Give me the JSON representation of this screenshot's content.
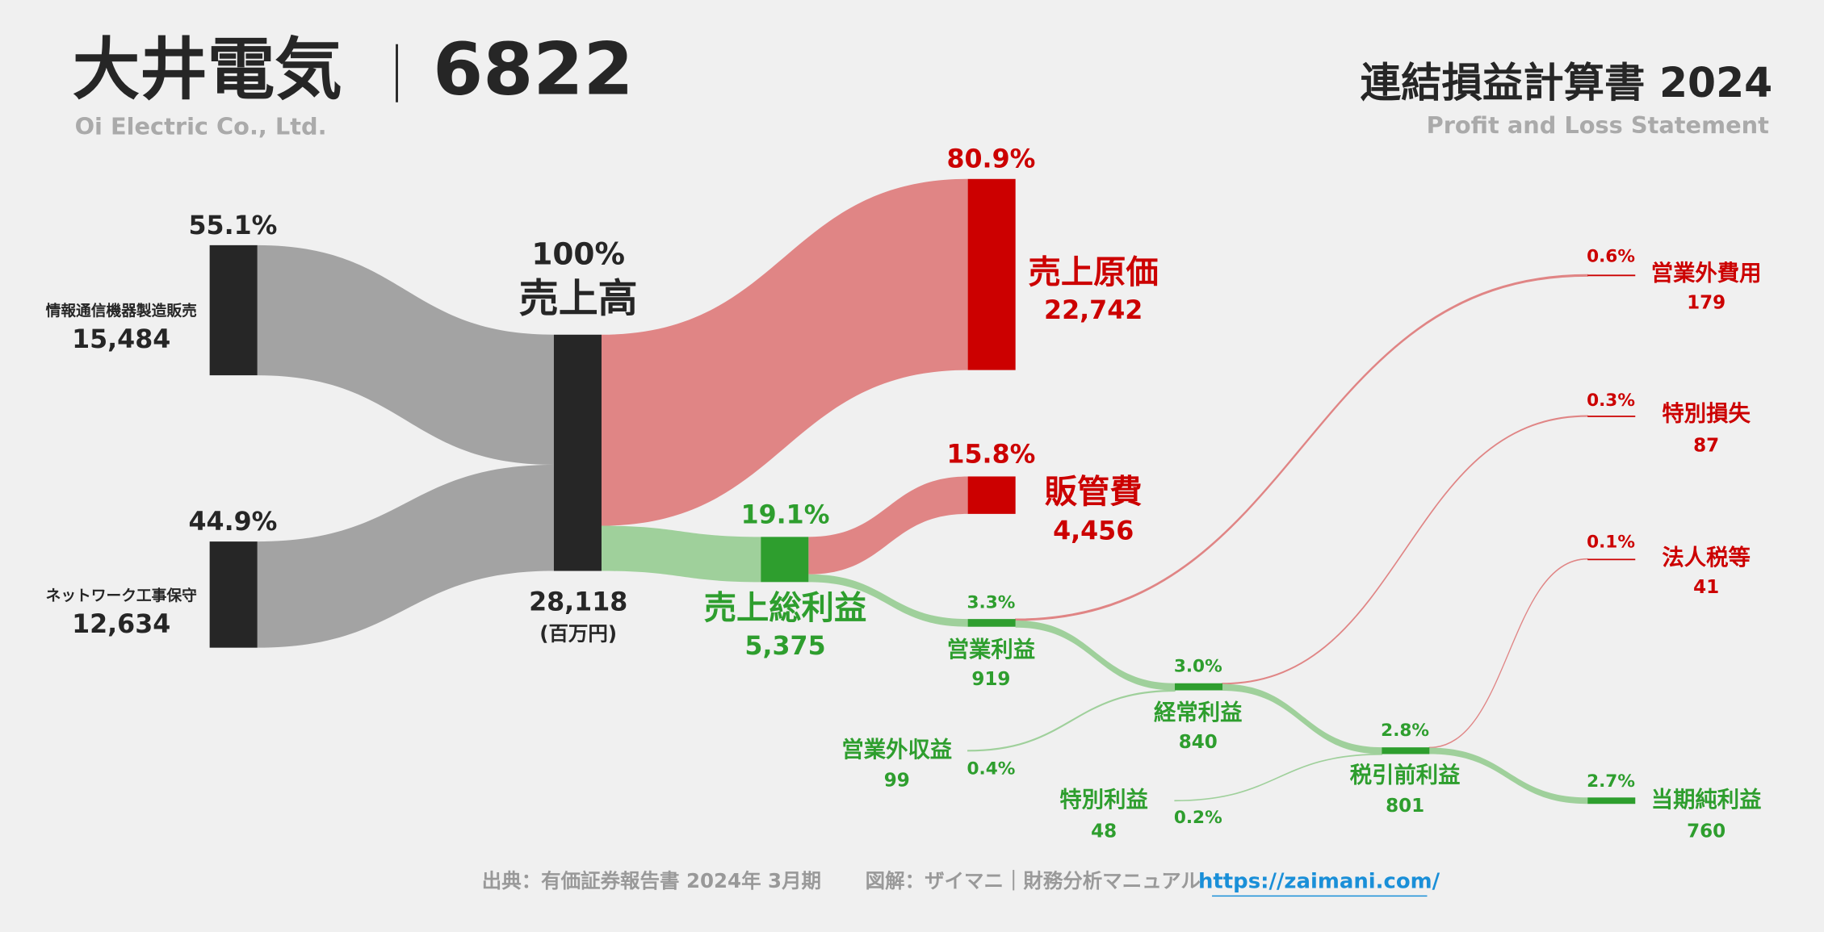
{
  "header": {
    "company": "大井電気",
    "code": "6822",
    "company_en": "Oi Electric Co., Ltd.",
    "report": "連結損益計算書 2024",
    "report_en": "Profit and Loss Statement"
  },
  "chart_data": {
    "type": "sankey",
    "unit": "(百万円)",
    "nodes": [
      {
        "name": "情報通信機器製造販売",
        "value": 15484,
        "value_label": "15,484",
        "share": "55.1%",
        "color": "#262626"
      },
      {
        "name": "ネットワーク工事保守",
        "value": 12634,
        "value_label": "12,634",
        "share": "44.9%",
        "color": "#262626"
      },
      {
        "name": "売上高",
        "value": 28118,
        "value_label": "28,118",
        "share": "100%",
        "color": "#262626",
        "link_color": "#a3a3a3"
      },
      {
        "name": "売上原価",
        "value": 22742,
        "value_label": "22,742",
        "share": "80.9%",
        "color": "#cc0000",
        "link_color": "#e08585"
      },
      {
        "name": "販管費",
        "value": 4456,
        "value_label": "4,456",
        "share": "15.8%",
        "color": "#cc0000",
        "link_color": "#e08585"
      },
      {
        "name": "売上総利益",
        "value": 5375,
        "value_label": "5,375",
        "share": "19.1%",
        "color": "#2e9e2e",
        "link_color": "#9fd09b"
      },
      {
        "name": "営業利益",
        "value": 919,
        "value_label": "919",
        "share": "3.3%",
        "color": "#2e9e2e",
        "link_color": "#9fd09b"
      },
      {
        "name": "営業外費用",
        "value": 179,
        "value_label": "179",
        "share": "0.6%",
        "color": "#cc0000",
        "link_color": "#e08585"
      },
      {
        "name": "特別損失",
        "value": 87,
        "value_label": "87",
        "share": "0.3%",
        "color": "#cc0000",
        "link_color": "#e08585"
      },
      {
        "name": "法人税等",
        "value": 41,
        "value_label": "41",
        "share": "0.1%",
        "color": "#cc0000",
        "link_color": "#e08585"
      },
      {
        "name": "経常利益",
        "value": 840,
        "value_label": "840",
        "share": "3.0%",
        "color": "#2e9e2e",
        "link_color": "#9fd09b"
      },
      {
        "name": "営業外収益",
        "value": 99,
        "value_label": "99",
        "share": "0.4%",
        "color": "#2e9e2e",
        "bar": false
      },
      {
        "name": "税引前利益",
        "value": 801,
        "value_label": "801",
        "share": "2.8%",
        "color": "#2e9e2e",
        "link_color": "#9fd09b"
      },
      {
        "name": "特別利益",
        "value": 48,
        "value_label": "48",
        "share": "0.2%",
        "color": "#2e9e2e",
        "bar": false
      },
      {
        "name": "当期純利益",
        "value": 760,
        "value_label": "760",
        "share": "2.7%",
        "color": "#2e9e2e",
        "link_color": "#9fd09b"
      }
    ],
    "links": [
      {
        "from": "情報通信機器製造販売",
        "to": "売上高"
      },
      {
        "from": "ネットワーク工事保守",
        "to": "売上高"
      },
      {
        "from": "売上高",
        "to": "売上原価"
      },
      {
        "from": "売上高",
        "to": "売上総利益"
      },
      {
        "from": "売上総利益",
        "to": "販管費"
      },
      {
        "from": "売上総利益",
        "to": "営業利益"
      },
      {
        "from": "営業利益",
        "to": "営業外費用"
      },
      {
        "from": "営業利益",
        "to": "経常利益"
      },
      {
        "from": "営業外収益",
        "to": "経常利益"
      },
      {
        "from": "経常利益",
        "to": "特別損失"
      },
      {
        "from": "経常利益",
        "to": "税引前利益"
      },
      {
        "from": "特別利益",
        "to": "税引前利益"
      },
      {
        "from": "税引前利益",
        "to": "法人税等"
      },
      {
        "from": "税引前利益",
        "to": "当期純利益"
      }
    ]
  },
  "footer": {
    "source": "出典：有価証券報告書 2024年 3月期",
    "credit": "図解：ザイマニ｜財務分析マニュアル",
    "url": "https://zaimani.com/"
  }
}
